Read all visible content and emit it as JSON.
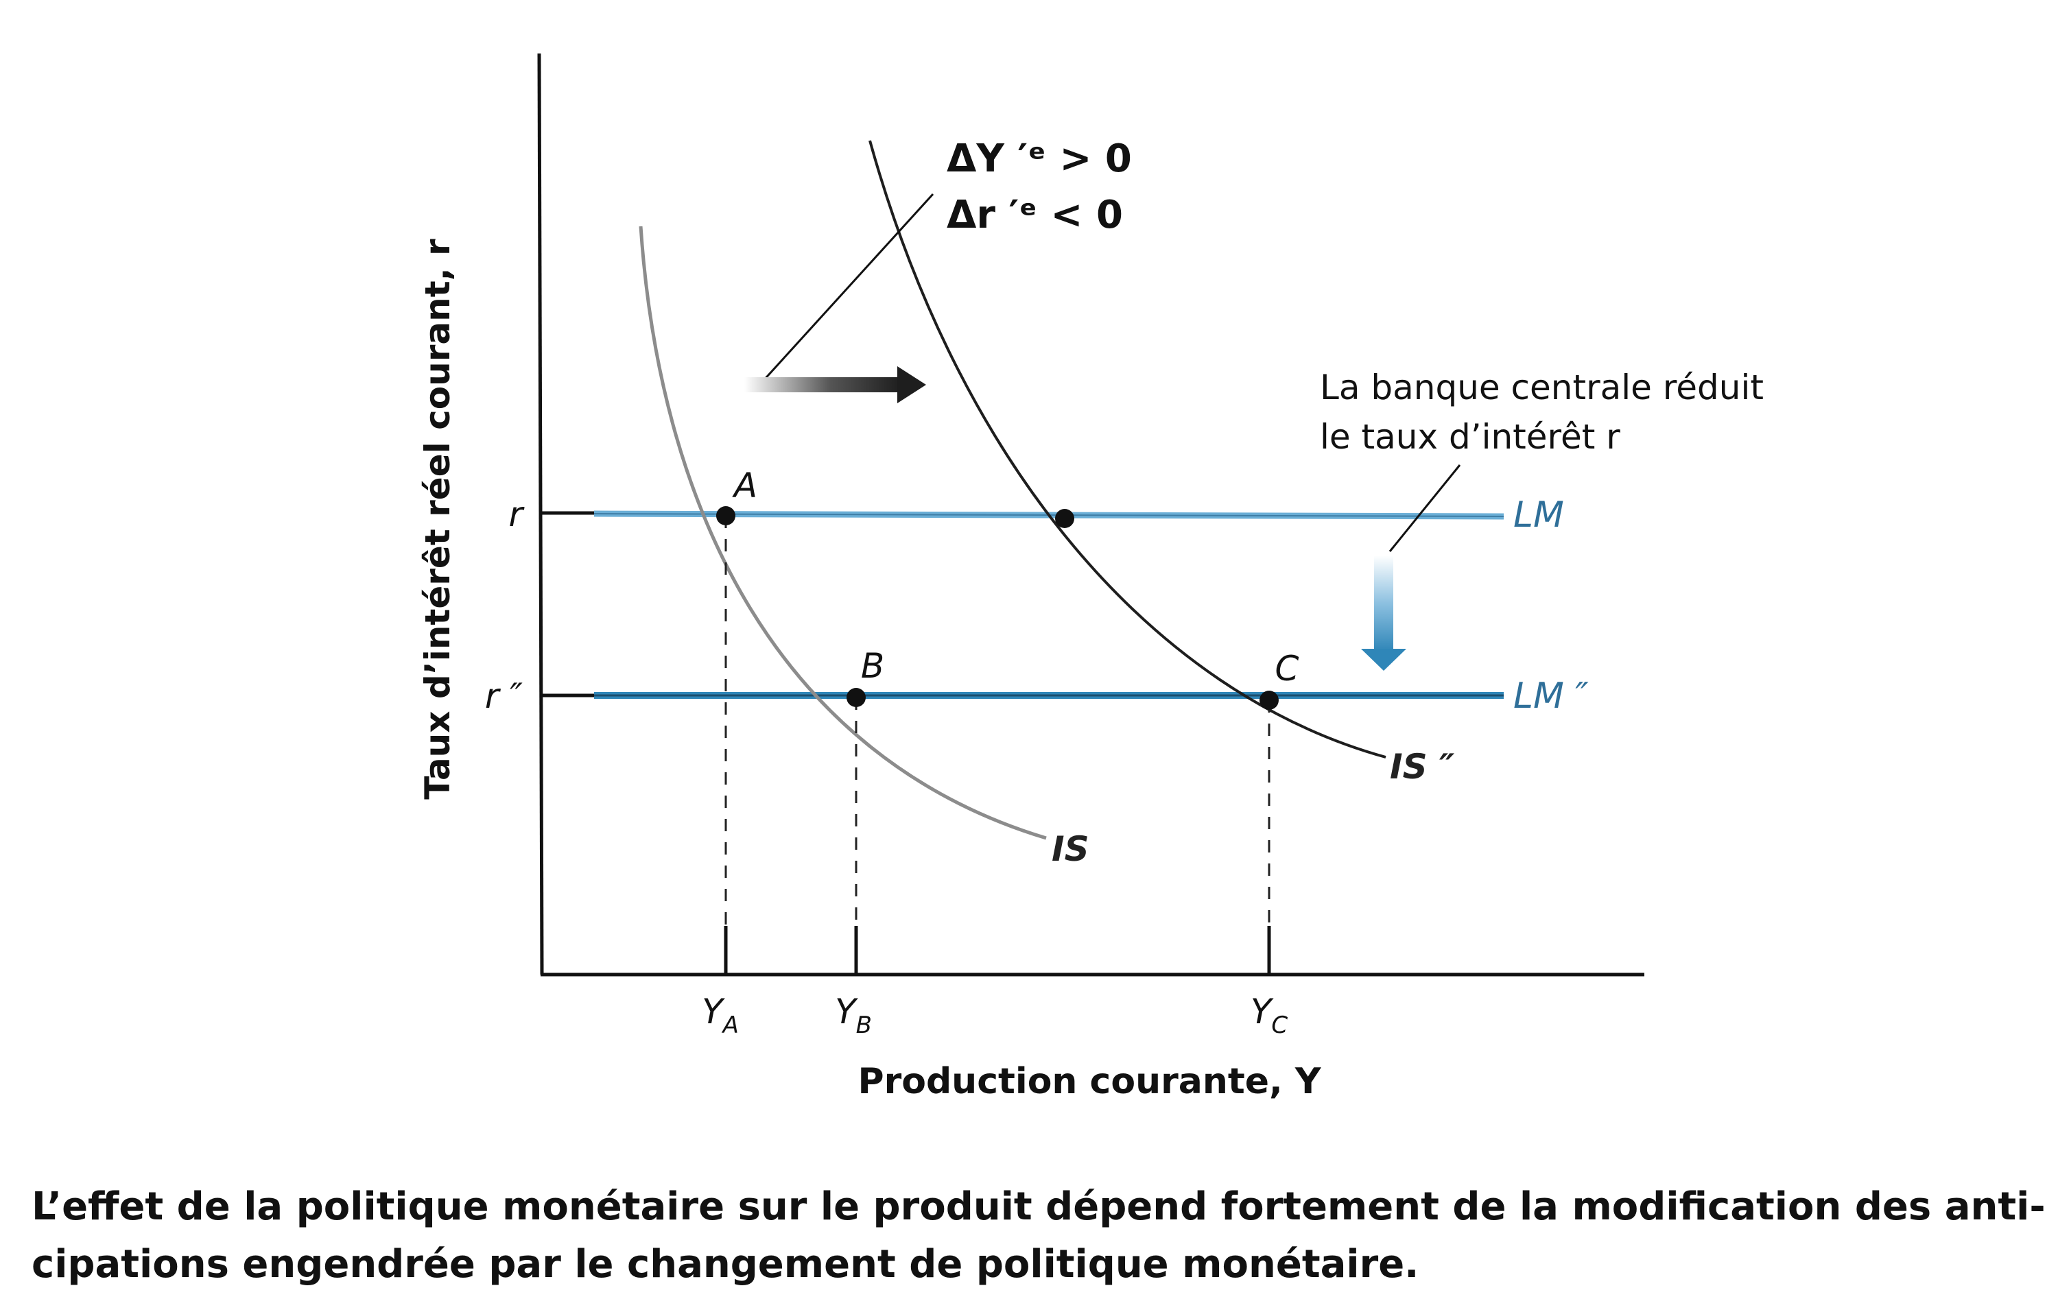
{
  "diagram": {
    "y_axis_label": "Taux d’intérêt réel courant, r",
    "x_axis_label": "Production courante, Y",
    "y_ticks": [
      {
        "id": "r",
        "label": "r"
      },
      {
        "id": "r2",
        "label": "r ″"
      }
    ],
    "x_ticks": [
      {
        "id": "YA",
        "base": "Y",
        "sub": "A"
      },
      {
        "id": "YB",
        "base": "Y",
        "sub": "B"
      },
      {
        "id": "YC",
        "base": "Y",
        "sub": "C"
      }
    ],
    "curves": {
      "is": "IS",
      "is2": "IS ″",
      "lm": "LM",
      "lm2": "LM ″"
    },
    "points": [
      "A",
      "B",
      "C"
    ],
    "expectations_annotation": {
      "line1": "ΔY ′ᵉ > 0",
      "line2": "Δr ′ᵉ < 0"
    },
    "central_bank_annotation": {
      "line1": "La banque centrale réduit",
      "line2": "le taux d’intérêt r"
    },
    "colors": {
      "axis": "#111111",
      "lm_line": "#6aaed6",
      "lm2_line": "#2f86b8",
      "is_curve": "#8c8c8c",
      "is2_curve": "#1e1e1e",
      "points": "#111111",
      "arrow_down": "#3a8fc4",
      "arrow_right": "#333333"
    }
  },
  "caption": {
    "line1": "L’effet de la politique monétaire sur le produit dépend fortement de la modification des anti-",
    "line2": "cipations engendrée par le changement de politique monétaire."
  }
}
